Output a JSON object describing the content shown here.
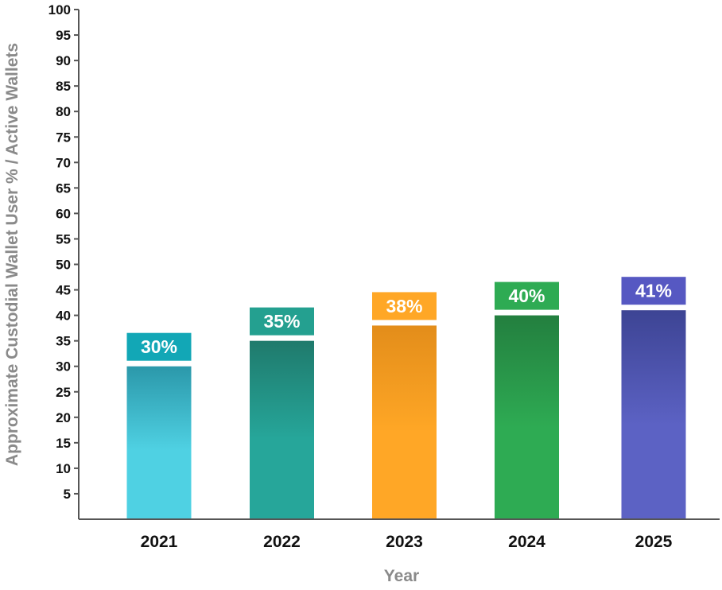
{
  "chart_data": {
    "type": "bar",
    "categories": [
      "2021",
      "2022",
      "2023",
      "2024",
      "2025"
    ],
    "values": [
      30,
      35,
      38,
      40,
      41
    ],
    "data_labels": [
      "30%",
      "35%",
      "38%",
      "40%",
      "41%"
    ],
    "xlabel": "Year",
    "ylabel": "Approximate Custodial Wallet User % / Active Wallets",
    "ylim": [
      0,
      100
    ],
    "yticks": [
      5,
      10,
      15,
      20,
      25,
      30,
      35,
      40,
      45,
      50,
      55,
      60,
      65,
      70,
      75,
      80,
      85,
      90,
      95,
      100
    ],
    "grid": false,
    "legend": "none",
    "colors": {
      "bar_top": [
        "#2b98aa",
        "#1f7a6c",
        "#e38d1a",
        "#237f3f",
        "#3d4494"
      ],
      "bar_bottom": [
        "#4fd1e3",
        "#26a69a",
        "#ffa726",
        "#2eab53",
        "#5c62c4"
      ],
      "label_box": [
        "#12a7b6",
        "#24a090",
        "#ffa726",
        "#2eab53",
        "#5658c2"
      ],
      "axis": "#555555"
    }
  }
}
